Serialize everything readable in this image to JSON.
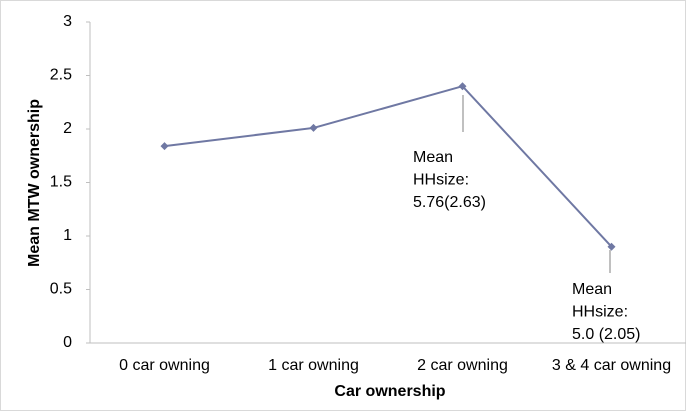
{
  "chart_data": {
    "type": "line",
    "categories": [
      "0 car owning",
      "1 car owning",
      "2 car owning",
      "3 & 4 car owning"
    ],
    "series": [
      {
        "name": "Mean MTW ownership",
        "color": "#6f78a3",
        "values": [
          1.84,
          2.01,
          2.4,
          0.9
        ]
      }
    ],
    "ylim": [
      0,
      3
    ],
    "yticks": [
      0,
      0.5,
      1,
      1.5,
      2,
      2.5,
      3
    ],
    "xlabel": "Car ownership",
    "ylabel": "Mean MTW ownership",
    "annotations": [
      [
        "Mean",
        "HHsize:",
        "5.76(2.63)"
      ],
      [
        "Mean",
        "HHsize:",
        "5.0 (2.05)"
      ]
    ],
    "grid": false
  }
}
